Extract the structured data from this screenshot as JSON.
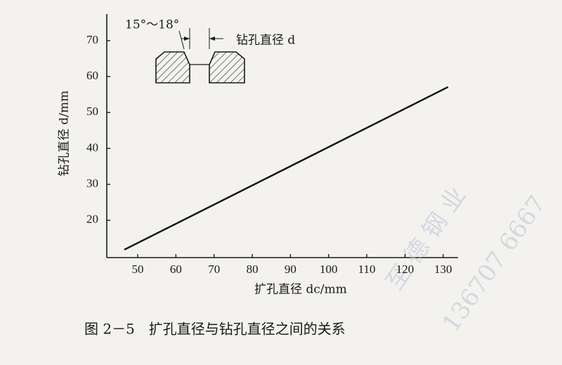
{
  "chart_data": {
    "type": "line",
    "x_label": "扩孔直径 dc/mm",
    "y_label": "钻孔直径 d/mm",
    "caption": "图 2－5　扩孔直径与钻孔直径之间的关系",
    "annotations": [
      "15°～18°",
      "钻孔直径 d"
    ],
    "watermark": [
      "至 德 钢 业",
      "136707 6667"
    ],
    "x": [
      46.5,
      131.3
    ],
    "series": [
      {
        "name": "钻孔直径",
        "color": "#111111",
        "values": [
          11.8,
          57.1
        ]
      }
    ],
    "xlim": [
      41.9,
      133.9
    ],
    "ylim": [
      9.6,
      77.4
    ],
    "xticks": [
      50,
      60,
      70,
      80,
      90,
      100,
      110,
      120,
      130
    ],
    "yticks": [
      20,
      30,
      40,
      50,
      60,
      70
    ],
    "grid": false
  }
}
